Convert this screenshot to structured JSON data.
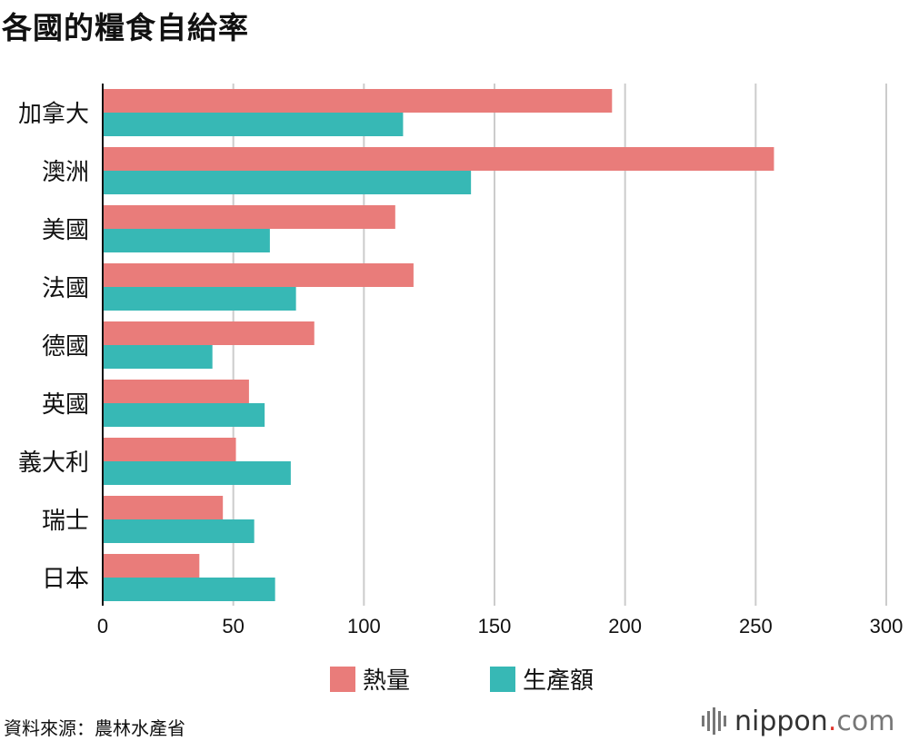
{
  "title": "各國的糧食自給率",
  "source": "資料來源：農林水產省",
  "brand": {
    "name": "nippon",
    "dot": ".",
    "domain": "com"
  },
  "colors": {
    "calorie": "#E97C7A",
    "production": "#37B8B5",
    "grid": "#cccccc",
    "axis": "#111111",
    "brand_dot": "#e0342b",
    "logo_gray": "#777777"
  },
  "chart_data": {
    "type": "bar",
    "orientation": "horizontal",
    "categories": [
      "加拿大",
      "澳洲",
      "美國",
      "法國",
      "德國",
      "英國",
      "義大利",
      "瑞士",
      "日本"
    ],
    "series": [
      {
        "name": "熱量",
        "color": "#E97C7A",
        "values": [
          195,
          257,
          112,
          119,
          81,
          56,
          51,
          46,
          37
        ]
      },
      {
        "name": "生產額",
        "color": "#37B8B5",
        "values": [
          115,
          141,
          64,
          74,
          42,
          62,
          72,
          58,
          66
        ]
      }
    ],
    "xticks": [
      "0",
      "50",
      "100",
      "150",
      "200",
      "250",
      "300"
    ],
    "xlim": [
      0,
      300
    ],
    "grid": true,
    "legend": "bottom-center"
  }
}
